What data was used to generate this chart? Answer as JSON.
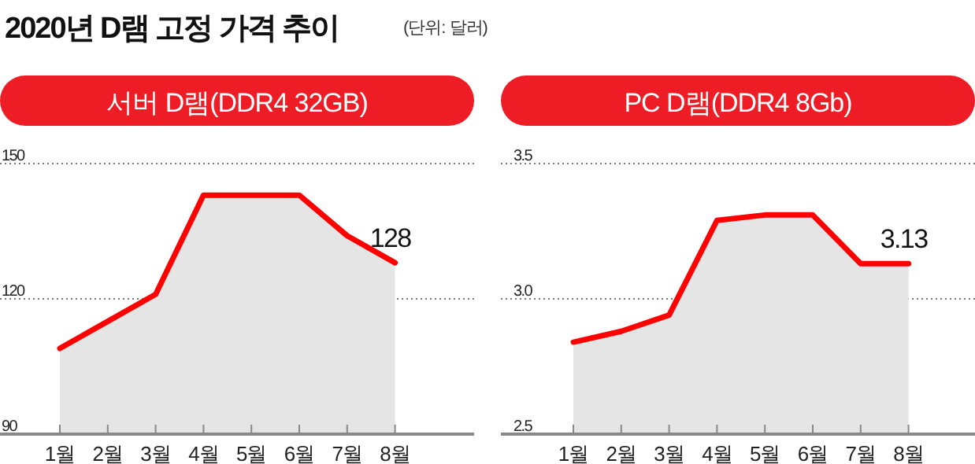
{
  "chart_data": [
    {
      "type": "area",
      "title": "서버 D램(DDR4 32GB)",
      "annotations": [
        "2020년 D램 고정 가격 추이",
        "(단위: 달러)"
      ],
      "categories": [
        "1월",
        "2월",
        "3월",
        "4월",
        "5월",
        "6월",
        "7월",
        "8월"
      ],
      "series": [
        {
          "color": "#ff0000",
          "values": [
            109,
            115,
            121,
            143,
            143,
            143,
            134,
            128
          ],
          "value_labels": [
            null,
            null,
            null,
            null,
            null,
            null,
            null,
            "128"
          ]
        }
      ],
      "ylim": [
        90,
        150
      ],
      "yticks": [
        90,
        120,
        150
      ],
      "grid": "y"
    },
    {
      "type": "area",
      "title": "PC D램(DDR4 8Gb)",
      "categories": [
        "1월",
        "2월",
        "3월",
        "4월",
        "5월",
        "6월",
        "7월",
        "8월"
      ],
      "series": [
        {
          "color": "#ff0000",
          "values": [
            2.84,
            2.88,
            2.94,
            3.29,
            3.31,
            3.31,
            3.13,
            3.13
          ],
          "value_labels": [
            null,
            null,
            null,
            null,
            null,
            null,
            null,
            "3.13"
          ]
        }
      ],
      "ylim": [
        2.5,
        3.5
      ],
      "yticks": [
        2.5,
        {
          "value": 3.0,
          "label": "3.0"
        },
        3.5
      ],
      "grid": "y"
    }
  ]
}
